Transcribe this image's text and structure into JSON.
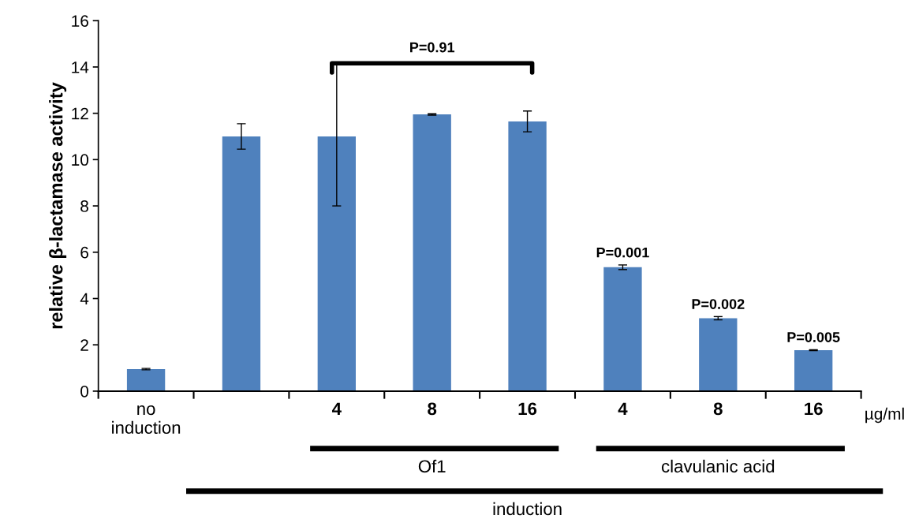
{
  "chart_data": {
    "type": "bar",
    "ylabel": "relative β-lactamase activity",
    "categories": [
      "no\ninduction",
      null,
      "4",
      "8",
      "16",
      "4",
      "8",
      "16"
    ],
    "values": [
      0.95,
      11.0,
      11.0,
      11.95,
      11.65,
      5.35,
      3.15,
      1.77
    ],
    "errors": [
      0.03,
      0.55,
      [
        8.0,
        14.1
      ],
      0.03,
      0.45,
      0.1,
      0.07,
      0.02
    ],
    "color": "#4f81bd",
    "ylim": [
      0,
      16
    ],
    "yticks": [
      0,
      2,
      4,
      6,
      8,
      10,
      12,
      14,
      16
    ],
    "annotations": [
      "P=0.91",
      "P=0.001",
      "P=0.002",
      "P=0.005",
      "µg/ml",
      "Of1",
      "clavulanic acid",
      "induction"
    ],
    "grid": false,
    "legend": false
  }
}
